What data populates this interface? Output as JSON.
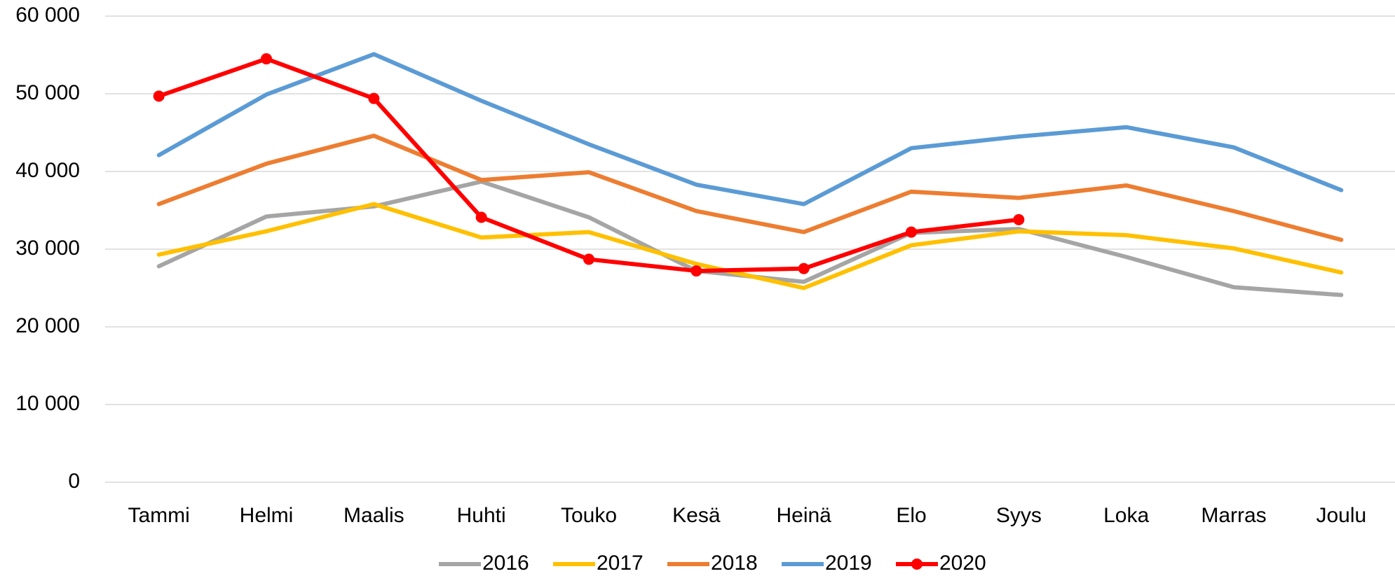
{
  "chart_data": {
    "type": "line",
    "categories": [
      "Tammi",
      "Helmi",
      "Maalis",
      "Huhti",
      "Touko",
      "Kesä",
      "Heinä",
      "Elo",
      "Syys",
      "Loka",
      "Marras",
      "Joulu"
    ],
    "series": [
      {
        "name": "2016",
        "color": "#a5a5a5",
        "values": [
          27800,
          34200,
          35500,
          38700,
          34100,
          27200,
          25800,
          32100,
          32600,
          29000,
          25100,
          24100
        ]
      },
      {
        "name": "2017",
        "color": "#ffc000",
        "values": [
          29300,
          32300,
          35800,
          31500,
          32200,
          28100,
          25000,
          30500,
          32300,
          31800,
          30100,
          27000
        ]
      },
      {
        "name": "2018",
        "color": "#ed7d31",
        "values": [
          35800,
          41000,
          44600,
          38900,
          39900,
          34900,
          32200,
          37400,
          36600,
          38200,
          34900,
          31200
        ]
      },
      {
        "name": "2019",
        "color": "#5b9bd5",
        "values": [
          42100,
          49900,
          55100,
          49100,
          43500,
          38300,
          35800,
          43000,
          44500,
          45700,
          43100,
          37600
        ]
      },
      {
        "name": "2020",
        "color": "#ff0000",
        "marker": true,
        "values": [
          49700,
          54500,
          49400,
          34100,
          28700,
          27200,
          27500,
          32200,
          33800,
          null,
          null,
          null
        ]
      }
    ],
    "ylim": [
      0,
      60000
    ],
    "yticks": [
      0,
      {
        "value": 10000,
        "label": "10 000"
      },
      {
        "value": 20000,
        "label": "20 000"
      },
      {
        "value": 30000,
        "label": "30 000"
      },
      {
        "value": 40000,
        "label": "40 000"
      },
      {
        "value": 50000,
        "label": "50 000"
      },
      {
        "value": 60000,
        "label": "60 000"
      }
    ],
    "grid": true,
    "legend": "bottom"
  }
}
